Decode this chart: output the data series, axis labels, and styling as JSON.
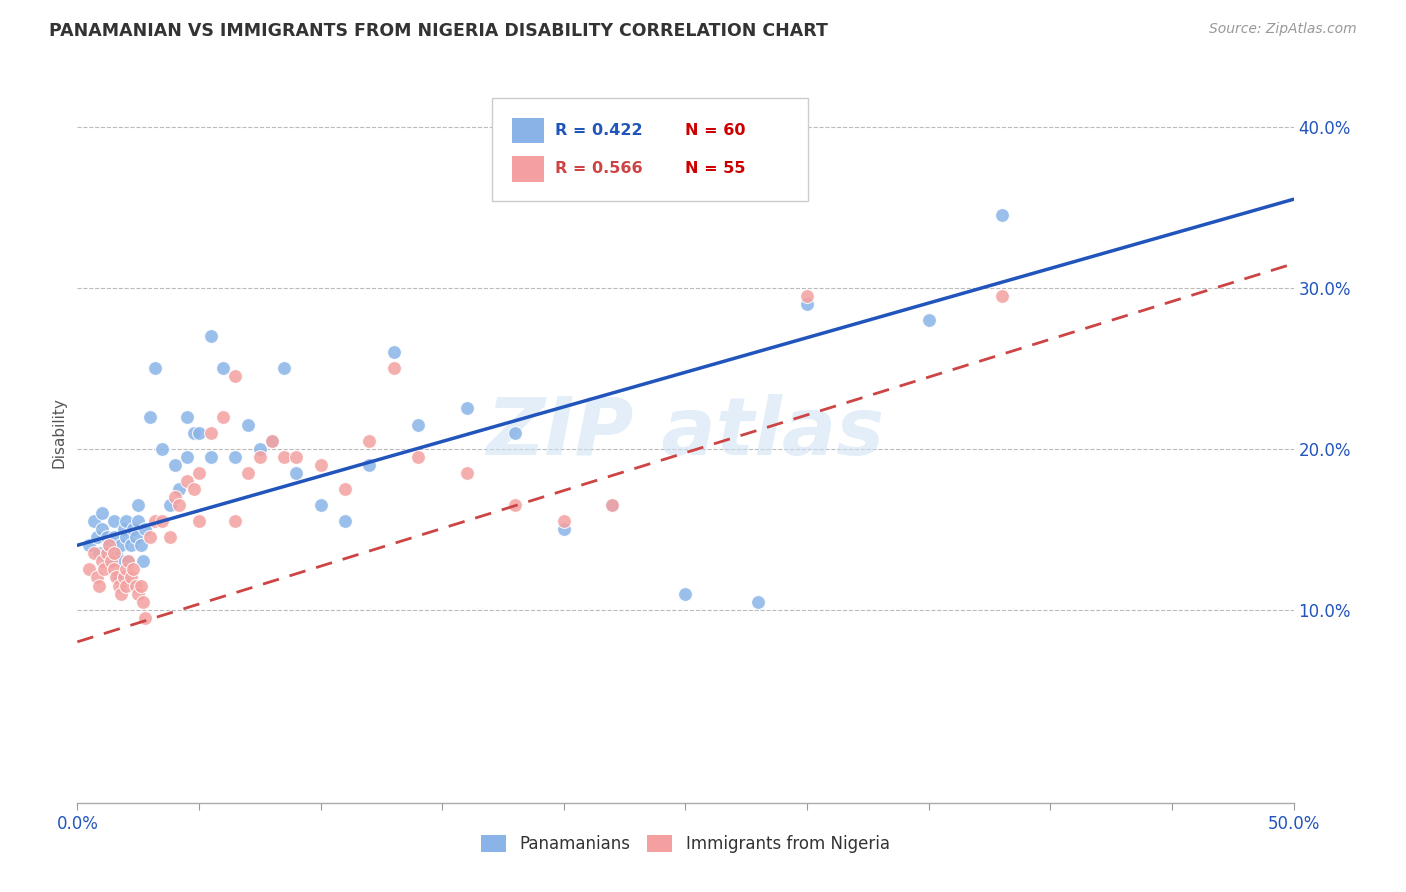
{
  "title": "PANAMANIAN VS IMMIGRANTS FROM NIGERIA DISABILITY CORRELATION CHART",
  "source": "Source: ZipAtlas.com",
  "ylabel": "Disability",
  "xlim": [
    0.0,
    0.5
  ],
  "ylim": [
    -0.02,
    0.44
  ],
  "xtick_positions": [
    0.0,
    0.05,
    0.1,
    0.15,
    0.2,
    0.25,
    0.3,
    0.35,
    0.4,
    0.45,
    0.5
  ],
  "xticklabels": [
    "0.0%",
    "",
    "",
    "",
    "",
    "",
    "",
    "",
    "",
    "",
    "50.0%"
  ],
  "ytick_positions": [
    0.1,
    0.2,
    0.3,
    0.4
  ],
  "ytick_labels": [
    "10.0%",
    "20.0%",
    "30.0%",
    "40.0%"
  ],
  "blue_color": "#8ab4e8",
  "pink_color": "#f4a0a0",
  "blue_line_color": "#2255bb",
  "pink_line_color": "#cc4444",
  "blue_line_x0": 0.0,
  "blue_line_y0": 0.14,
  "blue_line_x1": 0.5,
  "blue_line_y1": 0.355,
  "pink_line_x0": 0.0,
  "pink_line_y0": 0.08,
  "pink_line_x1": 0.5,
  "pink_line_y1": 0.315,
  "pan_x": [
    0.005,
    0.007,
    0.008,
    0.009,
    0.01,
    0.01,
    0.012,
    0.013,
    0.014,
    0.015,
    0.015,
    0.016,
    0.017,
    0.018,
    0.018,
    0.019,
    0.02,
    0.02,
    0.021,
    0.022,
    0.023,
    0.024,
    0.025,
    0.025,
    0.026,
    0.027,
    0.028,
    0.03,
    0.032,
    0.035,
    0.038,
    0.04,
    0.042,
    0.045,
    0.048,
    0.05,
    0.055,
    0.06,
    0.065,
    0.07,
    0.075,
    0.08,
    0.085,
    0.09,
    0.1,
    0.11,
    0.12,
    0.13,
    0.14,
    0.16,
    0.18,
    0.2,
    0.22,
    0.25,
    0.28,
    0.3,
    0.35,
    0.38,
    0.045,
    0.055
  ],
  "pan_y": [
    0.14,
    0.155,
    0.145,
    0.135,
    0.16,
    0.15,
    0.145,
    0.14,
    0.13,
    0.145,
    0.155,
    0.135,
    0.12,
    0.13,
    0.14,
    0.15,
    0.145,
    0.155,
    0.13,
    0.14,
    0.15,
    0.145,
    0.155,
    0.165,
    0.14,
    0.13,
    0.15,
    0.22,
    0.25,
    0.2,
    0.165,
    0.19,
    0.175,
    0.22,
    0.21,
    0.21,
    0.27,
    0.25,
    0.195,
    0.215,
    0.2,
    0.205,
    0.25,
    0.185,
    0.165,
    0.155,
    0.19,
    0.26,
    0.215,
    0.225,
    0.21,
    0.15,
    0.165,
    0.11,
    0.105,
    0.29,
    0.28,
    0.345,
    0.195,
    0.195
  ],
  "nig_x": [
    0.005,
    0.007,
    0.008,
    0.009,
    0.01,
    0.011,
    0.012,
    0.013,
    0.014,
    0.015,
    0.015,
    0.016,
    0.017,
    0.018,
    0.019,
    0.02,
    0.02,
    0.021,
    0.022,
    0.023,
    0.024,
    0.025,
    0.026,
    0.027,
    0.028,
    0.03,
    0.032,
    0.035,
    0.038,
    0.04,
    0.042,
    0.045,
    0.048,
    0.05,
    0.055,
    0.06,
    0.065,
    0.07,
    0.075,
    0.08,
    0.085,
    0.09,
    0.1,
    0.11,
    0.12,
    0.13,
    0.14,
    0.16,
    0.18,
    0.2,
    0.22,
    0.3,
    0.38,
    0.05,
    0.065
  ],
  "nig_y": [
    0.125,
    0.135,
    0.12,
    0.115,
    0.13,
    0.125,
    0.135,
    0.14,
    0.13,
    0.125,
    0.135,
    0.12,
    0.115,
    0.11,
    0.12,
    0.125,
    0.115,
    0.13,
    0.12,
    0.125,
    0.115,
    0.11,
    0.115,
    0.105,
    0.095,
    0.145,
    0.155,
    0.155,
    0.145,
    0.17,
    0.165,
    0.18,
    0.175,
    0.185,
    0.21,
    0.22,
    0.245,
    0.185,
    0.195,
    0.205,
    0.195,
    0.195,
    0.19,
    0.175,
    0.205,
    0.25,
    0.195,
    0.185,
    0.165,
    0.155,
    0.165,
    0.295,
    0.295,
    0.155,
    0.155
  ]
}
